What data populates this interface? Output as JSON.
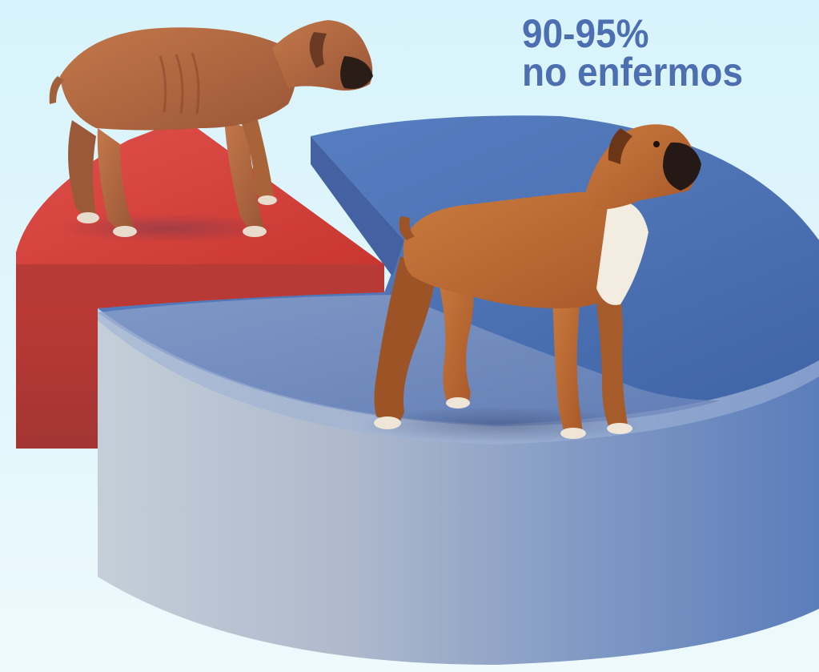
{
  "chart_data": {
    "type": "pie",
    "title": "",
    "slices": [
      {
        "label": "90-95% no enfermos",
        "range_percent": [
          90,
          95
        ],
        "value": 92.5,
        "color": "#4e74b6",
        "label_lines": [
          "90-95%",
          "no enfermos"
        ]
      },
      {
        "label": "",
        "value": 7.5,
        "color": "#d6403c",
        "exploded": true
      }
    ]
  },
  "labels": {
    "percent": "90-95%",
    "caption": "no enfermos"
  },
  "illustrations": {
    "sick_dog": "thin boxer dog standing on red slice",
    "healthy_dog": "healthy boxer dog standing on blue slice"
  },
  "colors": {
    "background": "#dcf4fb",
    "label_text": "#4b6fb0",
    "blue_slice": "#4e74b6",
    "red_slice": "#d6403c"
  }
}
